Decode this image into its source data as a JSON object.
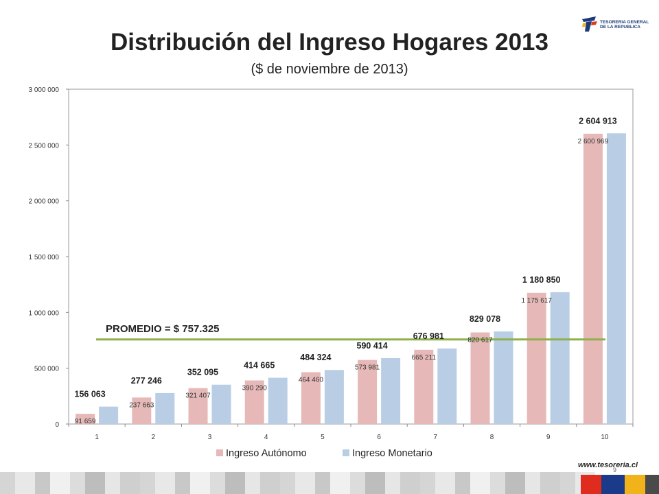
{
  "header": {
    "title": "Distribución del Ingreso Hogares 2013",
    "subtitle": "($ de noviembre de 2013)"
  },
  "logo": {
    "line1": "TESORERIA GENERAL",
    "line2": "DE LA REPUBLICA",
    "colors": [
      "#1c3a7a",
      "#e03a1e",
      "#f2b21a"
    ]
  },
  "footer": {
    "site": "www.tesoreria.cl",
    "page_number": "9",
    "strip_colors": [
      "#d5d5d5",
      "#e8e8e8",
      "#c8c8c8",
      "#f0f0f0",
      "#dcdcdc",
      "#bdbdbd",
      "#e6e6e6",
      "#cfcfcf"
    ],
    "flag_colors": [
      "#e02b1f",
      "#1c3a8a",
      "#f2b21a",
      "#4a4a4a"
    ]
  },
  "chart_data": {
    "type": "bar",
    "categories": [
      "1",
      "2",
      "3",
      "4",
      "5",
      "6",
      "7",
      "8",
      "9",
      "10"
    ],
    "series": [
      {
        "name": "Ingreso Autónomo",
        "color": "#e6b9b8",
        "values": [
          91659,
          237663,
          321407,
          390290,
          464460,
          573981,
          665211,
          820617,
          1175617,
          2600969
        ],
        "labels": [
          "91 659",
          "237 663",
          "321 407",
          "390 290",
          "464 460",
          "573 981",
          "665 211",
          "820 617",
          "1 175 617",
          "2 600 969"
        ]
      },
      {
        "name": "Ingreso Monetario",
        "color": "#b9cde5",
        "values": [
          156063,
          277246,
          352095,
          414665,
          484324,
          590414,
          676981,
          829078,
          1180850,
          2604913
        ],
        "labels": [
          "156 063",
          "277 246",
          "352 095",
          "414 665",
          "484 324",
          "590 414",
          "676 981",
          "829 078",
          "1 180 850",
          "2 604 913"
        ]
      }
    ],
    "ylim": [
      0,
      3000000
    ],
    "yticks": [
      0,
      500000,
      1000000,
      1500000,
      2000000,
      2500000,
      3000000
    ],
    "ytick_labels": [
      "0",
      "500 000",
      "1 000 000",
      "1 500 000",
      "2 000 000",
      "2 500 000",
      "3 000 000"
    ],
    "grid": false,
    "legend_position": "bottom",
    "average_line": {
      "value": 757325,
      "label": "PROMEDIO = $ 757.325",
      "color": "#8db04a"
    }
  }
}
